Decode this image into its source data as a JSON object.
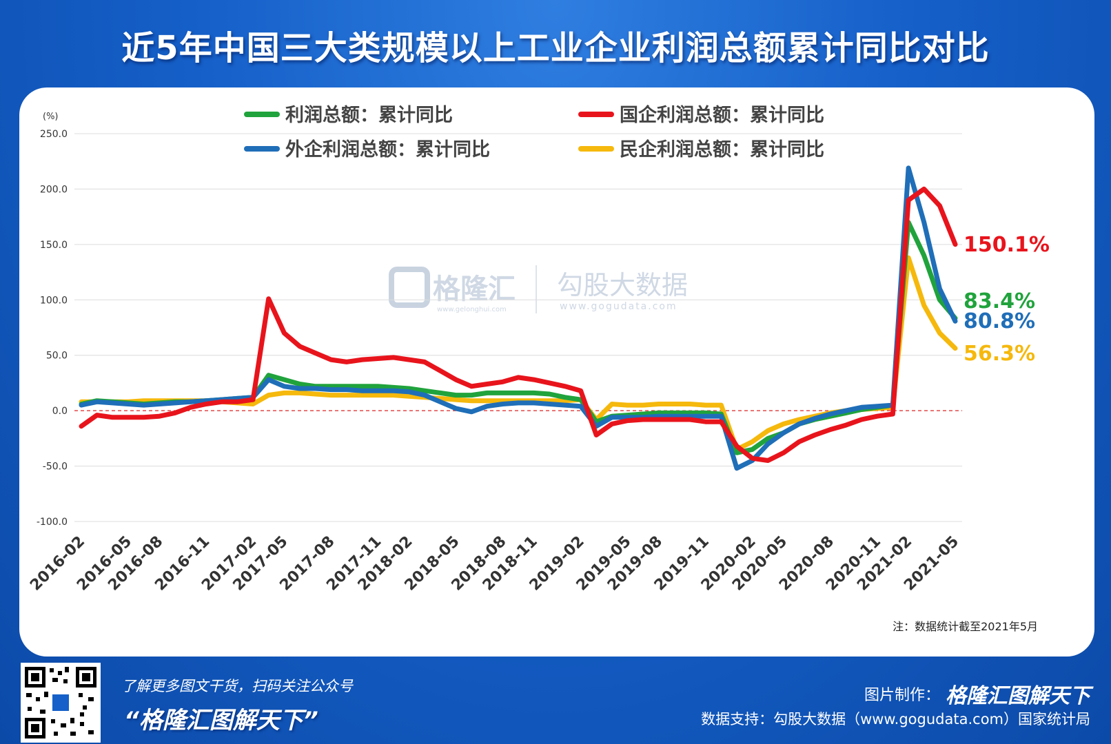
{
  "title": "近5年中国三大类规模以上工业企业利润总额累计同比对比",
  "footer": {
    "note": "了解更多图文干货，扫码关注公众号",
    "brand": "“格隆汇图解天下”",
    "credit_label": "图片制作：",
    "credit_logo": "格隆汇图解天下",
    "data_support": "数据支持：勾股大数据（www.gogudata.com）国家统计局"
  },
  "watermark": {
    "left_name": "格隆汇",
    "left_url": "www.gelonghui.com",
    "right_name": "勾股大数据",
    "right_url": "www.gogudata.com"
  },
  "icons": {
    "qr": "qr-code-icon",
    "watermark": "gelonghui-logo-icon"
  },
  "chart_data": {
    "type": "line",
    "y_unit": "(%)",
    "ylim": [
      -100,
      250
    ],
    "yticks": [
      "250.0",
      "200.0",
      "150.0",
      "100.0",
      "50.0",
      "0.0",
      "-50.0",
      "-100.0"
    ],
    "ytick_values": [
      250,
      200,
      150,
      100,
      50,
      0,
      -50,
      -100
    ],
    "x_tick_labels": [
      "2016-02",
      "2016-05",
      "2016-08",
      "2016-11",
      "2017-02",
      "2017-05",
      "2017-08",
      "2017-11",
      "2018-02",
      "2018-05",
      "2018-08",
      "2018-11",
      "2019-02",
      "2019-05",
      "2019-08",
      "2019-11",
      "2020-02",
      "2020-05",
      "2020-08",
      "2020-11",
      "2021-02",
      "2021-05"
    ],
    "zero_line": "dashed red",
    "note": "注：数据统计截至2021年5月",
    "legend_placement": "top",
    "series": [
      {
        "name": "利润总额：累计同比",
        "color": "#20a33c",
        "end_label": "83.4%",
        "values": [
          6,
          9,
          8,
          7,
          6,
          7,
          8,
          8,
          9,
          10,
          11,
          12,
          32,
          28,
          24,
          22,
          22,
          22,
          22,
          22,
          21,
          20,
          18,
          16,
          14,
          14,
          16,
          16,
          16,
          16,
          15,
          12,
          10,
          -10,
          -5,
          -4,
          -3,
          -2,
          -2,
          -2,
          -2,
          -3,
          -38,
          -35,
          -25,
          -20,
          -12,
          -8,
          -5,
          -2,
          1,
          3,
          5,
          170,
          140,
          100,
          83.4
        ]
      },
      {
        "name": "国企利润总额：累计同比",
        "color": "#e8141c",
        "end_label": "150.1%",
        "values": [
          -14,
          -4,
          -6,
          -6,
          -6,
          -5,
          -2,
          3,
          6,
          8,
          8,
          10,
          101,
          70,
          58,
          52,
          46,
          44,
          46,
          47,
          48,
          46,
          44,
          36,
          28,
          22,
          24,
          26,
          30,
          28,
          25,
          22,
          18,
          -22,
          -12,
          -9,
          -8,
          -8,
          -8,
          -8,
          -10,
          -10,
          -32,
          -43,
          -45,
          -38,
          -28,
          -22,
          -17,
          -13,
          -8,
          -5,
          -3,
          190,
          200,
          185,
          150.1
        ]
      },
      {
        "name": "外企利润总额：累计同比",
        "color": "#1f6eb8",
        "end_label": "80.8%",
        "values": [
          5,
          8,
          7,
          6,
          5,
          6,
          7,
          8,
          9,
          10,
          11,
          12,
          28,
          22,
          20,
          20,
          19,
          19,
          18,
          18,
          18,
          17,
          14,
          8,
          2,
          -1,
          4,
          6,
          7,
          7,
          6,
          5,
          4,
          -14,
          -6,
          -6,
          -6,
          -5,
          -5,
          -5,
          -5,
          -5,
          -52,
          -45,
          -30,
          -20,
          -12,
          -7,
          -3,
          0,
          3,
          4,
          5,
          219,
          170,
          110,
          80.8
        ]
      },
      {
        "name": "民企利润总额：累计同比",
        "color": "#f5b80c",
        "end_label": "56.3%",
        "values": [
          8,
          8,
          8,
          8,
          9,
          9,
          9,
          9,
          9,
          8,
          7,
          6,
          14,
          16,
          16,
          15,
          14,
          14,
          14,
          14,
          14,
          13,
          12,
          11,
          10,
          9,
          9,
          9,
          9,
          9,
          9,
          9,
          10,
          -8,
          6,
          5,
          5,
          6,
          6,
          6,
          5,
          5,
          -35,
          -28,
          -18,
          -12,
          -8,
          -5,
          -2,
          0,
          1,
          2,
          3,
          138,
          95,
          70,
          56.3
        ]
      }
    ]
  }
}
